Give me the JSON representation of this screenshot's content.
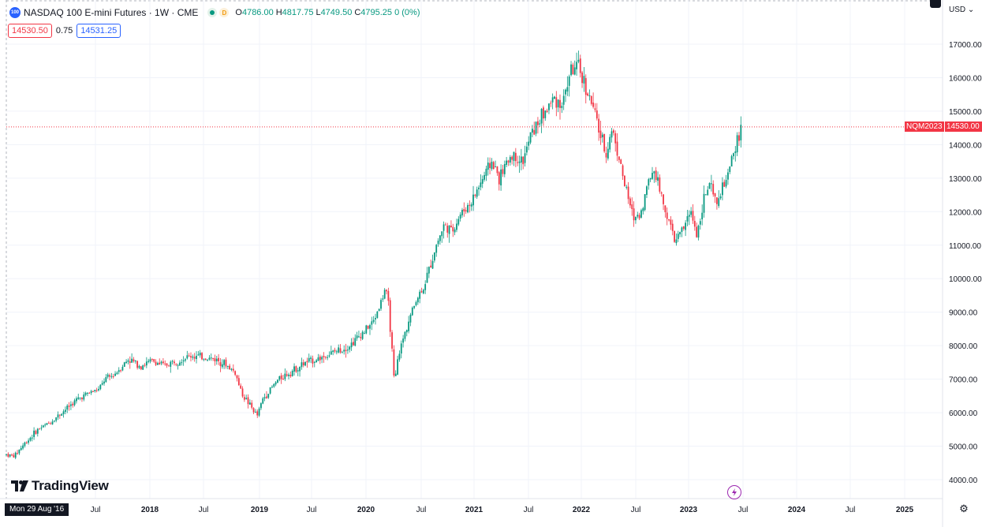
{
  "header": {
    "symbol_badge": "100",
    "title": "NASDAQ 100 E-mini Futures · 1W · CME",
    "status_badge": "D",
    "ohlc": {
      "o_label": "O",
      "o_value": "4786.00",
      "h_label": "H",
      "h_value": "4817.75",
      "l_label": "L",
      "l_value": "4749.50",
      "c_label": "C",
      "c_value": "4795.25 0 (0%)"
    },
    "sell_price": "14530.50",
    "spread": "0.75",
    "buy_price": "14531.25",
    "currency": "USD"
  },
  "price_axis": {
    "labels": [
      "17000.00",
      "16000.00",
      "15000.00",
      "14000.00",
      "13000.00",
      "12000.00",
      "11000.00",
      "10000.00",
      "9000.00",
      "8000.00",
      "7000.00",
      "6000.00",
      "5000.00",
      "4000.00"
    ],
    "last_price_tag": "14530.00",
    "symbol_tag": "NQM2023"
  },
  "time_axis": {
    "crosshair_label": "Mon 29 Aug '16",
    "labels": [
      "Jul",
      "2018",
      "Jul",
      "2019",
      "Jul",
      "2020",
      "Jul",
      "2021",
      "Jul",
      "2022",
      "Jul",
      "2023",
      "Jul",
      "2024",
      "Jul",
      "2025"
    ]
  },
  "branding": {
    "logo_text": "TradingView"
  },
  "colors": {
    "up": "#089981",
    "down": "#f23645",
    "grid": "#f0f3fa",
    "last_price_line": "#f23645"
  },
  "chart_data": {
    "type": "candlestick",
    "interval": "1W",
    "y_ticks": [
      4000,
      5000,
      6000,
      7000,
      8000,
      9000,
      10000,
      11000,
      12000,
      13000,
      14000,
      15000,
      16000,
      17000
    ],
    "last_price": 14530,
    "x_ticks": [
      "Jul",
      "2018",
      "Jul",
      "2019",
      "Jul",
      "2020",
      "Jul",
      "2021",
      "Jul",
      "2022",
      "Jul",
      "2023",
      "Jul",
      "2024",
      "Jul",
      "2025"
    ],
    "price_path_anchors": [
      [
        0,
        4750
      ],
      [
        10,
        4700
      ],
      [
        20,
        5000
      ],
      [
        40,
        5500
      ],
      [
        55,
        5700
      ],
      [
        70,
        6000
      ],
      [
        90,
        6400
      ],
      [
        105,
        6600
      ],
      [
        118,
        6700
      ],
      [
        125,
        7000
      ],
      [
        135,
        7100
      ],
      [
        155,
        7600
      ],
      [
        170,
        7400
      ],
      [
        185,
        7550
      ],
      [
        200,
        7400
      ],
      [
        210,
        7500
      ],
      [
        235,
        7700
      ],
      [
        265,
        7600
      ],
      [
        275,
        7500
      ],
      [
        290,
        7200
      ],
      [
        298,
        6600
      ],
      [
        318,
        5900
      ],
      [
        325,
        6400
      ],
      [
        345,
        7000
      ],
      [
        380,
        7500
      ],
      [
        400,
        7650
      ],
      [
        435,
        8000
      ],
      [
        465,
        8700
      ],
      [
        478,
        9500
      ],
      [
        480,
        9700
      ],
      [
        484,
        9300
      ],
      [
        488,
        8200
      ],
      [
        492,
        6800
      ],
      [
        497,
        7700
      ],
      [
        508,
        8600
      ],
      [
        520,
        9400
      ],
      [
        530,
        9800
      ],
      [
        545,
        11000
      ],
      [
        555,
        11600
      ],
      [
        565,
        11400
      ],
      [
        575,
        11900
      ],
      [
        590,
        12300
      ],
      [
        600,
        12800
      ],
      [
        615,
        13500
      ],
      [
        625,
        13000
      ],
      [
        640,
        13700
      ],
      [
        655,
        13500
      ],
      [
        665,
        14300
      ],
      [
        680,
        14900
      ],
      [
        695,
        15400
      ],
      [
        705,
        15200
      ],
      [
        715,
        16200
      ],
      [
        725,
        16300
      ],
      [
        735,
        15700
      ],
      [
        745,
        15000
      ],
      [
        752,
        14400
      ],
      [
        760,
        13700
      ],
      [
        768,
        14500
      ],
      [
        775,
        13800
      ],
      [
        785,
        12700
      ],
      [
        795,
        11800
      ],
      [
        805,
        12000
      ],
      [
        815,
        13000
      ],
      [
        822,
        13300
      ],
      [
        830,
        12500
      ],
      [
        840,
        11700
      ],
      [
        848,
        11100
      ],
      [
        858,
        11500
      ],
      [
        868,
        12000
      ],
      [
        876,
        11300
      ],
      [
        883,
        12300
      ],
      [
        892,
        12800
      ],
      [
        900,
        12200
      ],
      [
        910,
        12800
      ],
      [
        918,
        13300
      ],
      [
        925,
        14000
      ],
      [
        932,
        14530
      ]
    ]
  }
}
